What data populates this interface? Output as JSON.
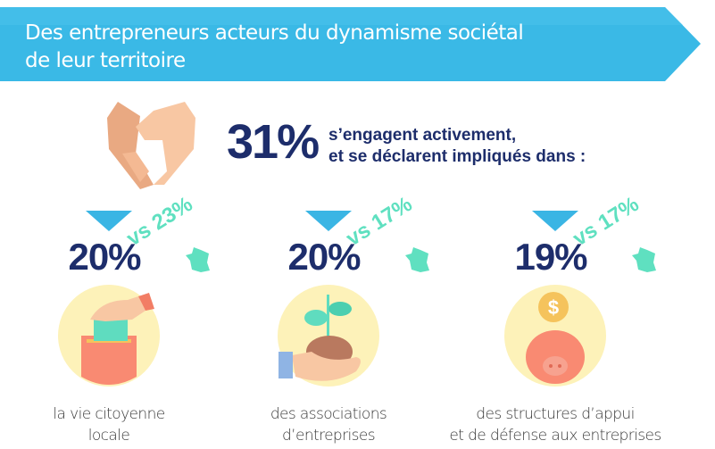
{
  "header": {
    "title_line1": "Des entrepreneurs acteurs du dynamisme sociétal",
    "title_line2": "de leur territoire",
    "color": "#3ab9e6"
  },
  "intro": {
    "percent": "31%",
    "line1": "s’engagent activement,",
    "line2": "et se déclarent impliqués dans :"
  },
  "stats": [
    {
      "percent": "20%",
      "comparison": "vs 23%",
      "caption_line1": "la vie citoyenne",
      "caption_line2": "locale",
      "icon": "ballot-box-icon"
    },
    {
      "percent": "20%",
      "comparison": "vs 17%",
      "caption_line1": "des associations",
      "caption_line2": "d’entreprises",
      "icon": "plant-in-hand-icon"
    },
    {
      "percent": "19%",
      "comparison": "vs 17%",
      "caption_line1": "des structures d’appui",
      "caption_line2": "et de défense aux entreprises",
      "icon": "piggy-bank-icon"
    }
  ]
}
